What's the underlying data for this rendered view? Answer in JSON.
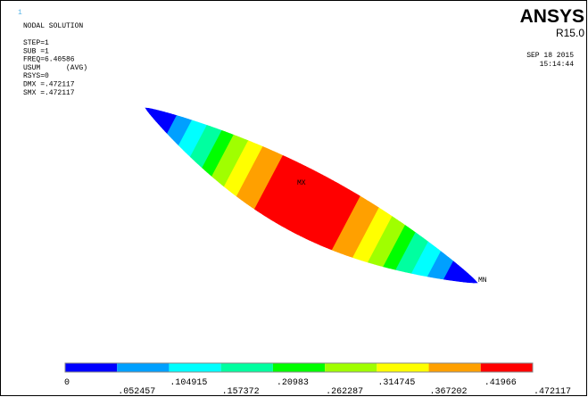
{
  "window_number": "1",
  "header": {
    "title": "NODAL SOLUTION",
    "lines": [
      "STEP=1",
      "SUB =1",
      "FREQ=6.40586",
      "USUM      (AVG)",
      "RSYS=0",
      "DMX =.472117",
      "SMX =.472117"
    ]
  },
  "logo": {
    "name": "ANSYS",
    "release": "R15.0"
  },
  "timestamp": {
    "date": "SEP 18 2015",
    "time": "15:14:44"
  },
  "markers": {
    "max": "MX",
    "min": "MN"
  },
  "legend": {
    "colors": [
      "#0000ff",
      "#00a0ff",
      "#00ffff",
      "#00ffa0",
      "#00ff00",
      "#a0ff00",
      "#ffff00",
      "#ffa000",
      "#ff0000"
    ],
    "labels": [
      "0",
      ".052457",
      ".104915",
      ".157372",
      ".20983",
      ".262287",
      ".314745",
      ".367202",
      ".41966",
      ".472117"
    ]
  }
}
